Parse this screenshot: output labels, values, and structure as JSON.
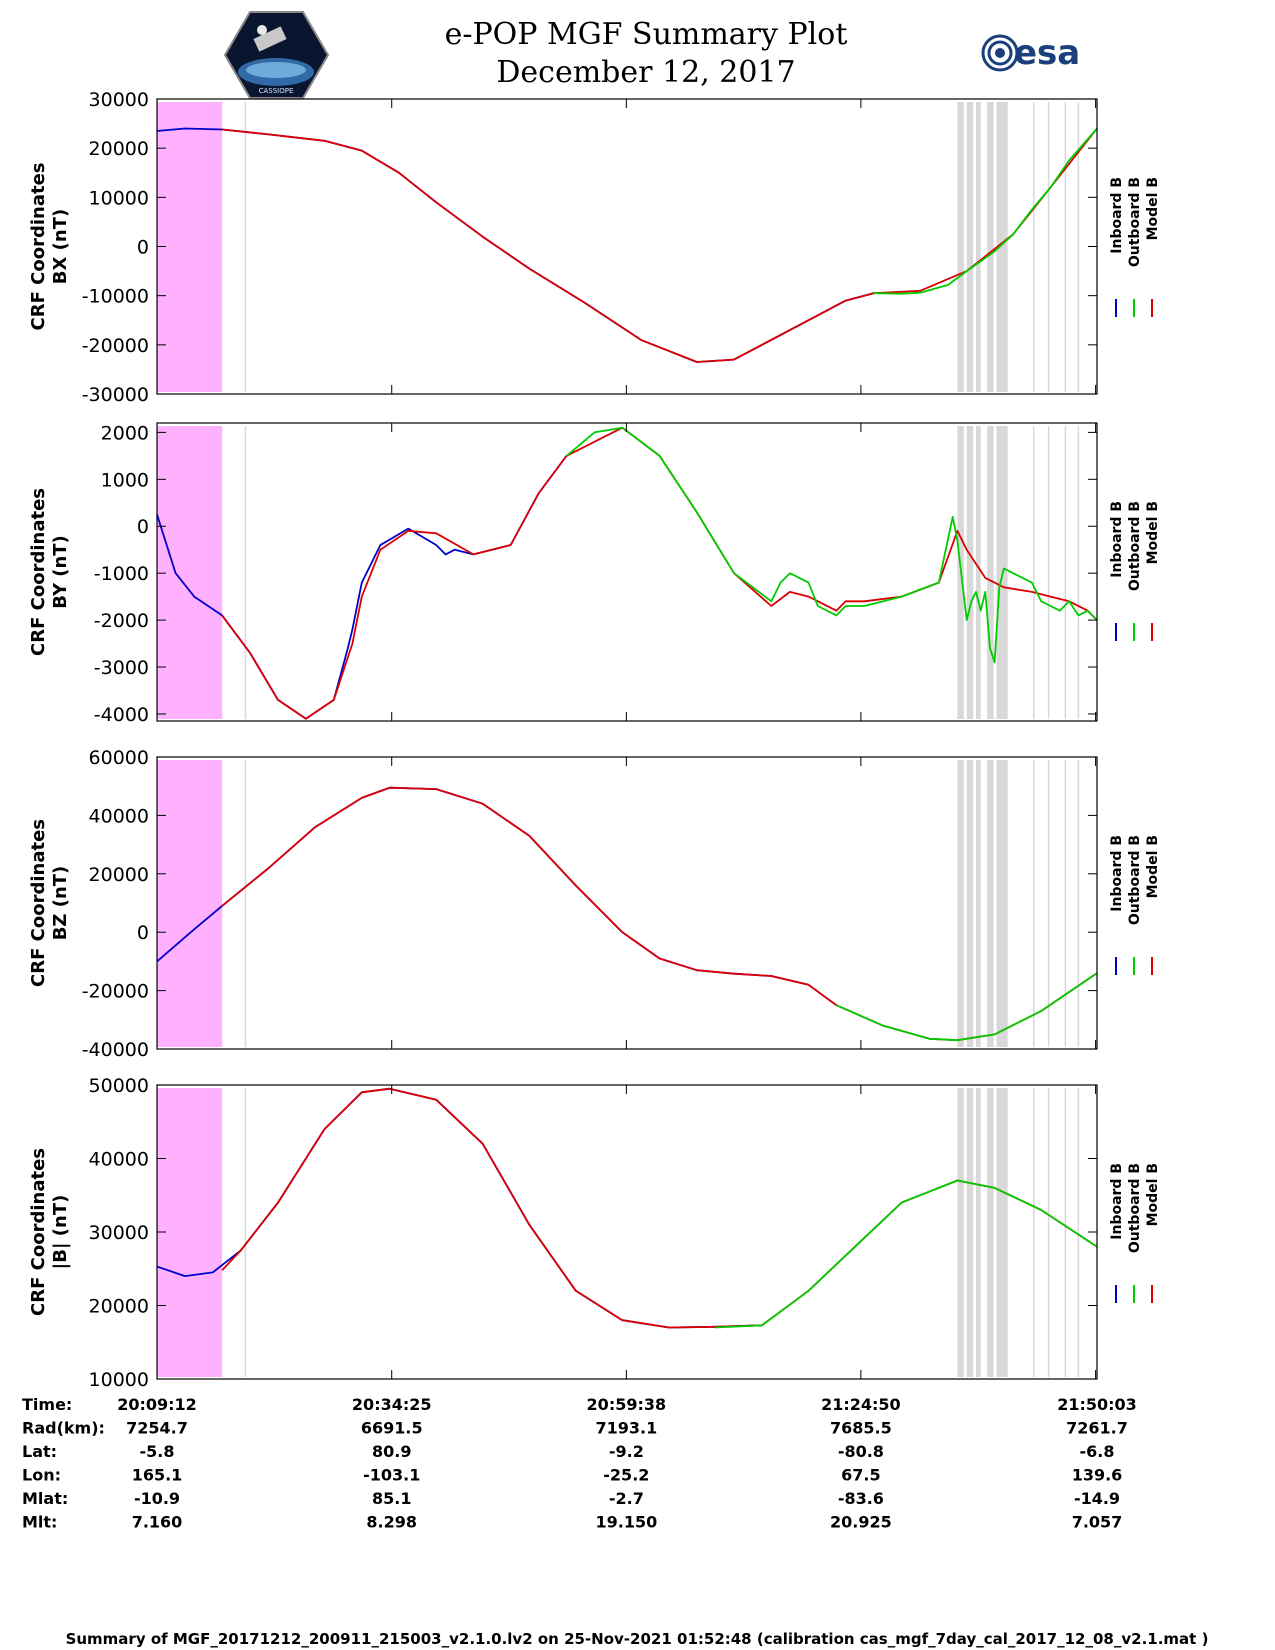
{
  "header": {
    "title_line1": "e-POP MGF Summary Plot",
    "title_line2": "December 12, 2017",
    "logo_left_text": "CASSIOPE",
    "logo_right_text": "esa"
  },
  "colors": {
    "inboard": "#0000cc",
    "outboard": "#00cc00",
    "model": "#dd0000",
    "shade_magenta": "#ffb0ff",
    "shade_gray": "#d8d8d8"
  },
  "legend": {
    "labels": [
      "Inboard B",
      "Outboard B",
      "Model B"
    ]
  },
  "chart_data": [
    {
      "type": "line",
      "panel": "BX",
      "ylabel_line1": "CRF Coordinates",
      "ylabel_line2": "BX (nT)",
      "ylim": [
        -30000,
        30000
      ],
      "yticks": [
        30000,
        20000,
        10000,
        0,
        -10000,
        -20000,
        -30000
      ],
      "x_minutes_range": [
        0,
        101
      ],
      "series": [
        {
          "name": "Inboard B",
          "color_key": "inboard",
          "x": [
            0,
            3,
            7,
            12,
            18,
            22,
            26,
            30,
            35,
            40,
            46,
            52,
            58,
            62,
            68,
            74,
            77
          ],
          "values": [
            23500,
            24000,
            23800,
            22800,
            21500,
            19500,
            15000,
            9000,
            2000,
            -4500,
            -11500,
            -19000,
            -23500,
            -23000,
            -17000,
            -11000,
            -9500
          ]
        },
        {
          "name": "Model B",
          "color_key": "model",
          "x": [
            7,
            12,
            18,
            22,
            26,
            30,
            35,
            40,
            46,
            52,
            58,
            62,
            68,
            74,
            77,
            82,
            87,
            92,
            96,
            101
          ],
          "values": [
            23800,
            22800,
            21500,
            19500,
            15000,
            9000,
            2000,
            -4500,
            -11500,
            -19000,
            -23500,
            -23000,
            -17000,
            -11000,
            -9500,
            -9000,
            -5000,
            2500,
            12000,
            24000
          ]
        },
        {
          "name": "Outboard B",
          "color_key": "outboard",
          "x": [
            77,
            80,
            82,
            85,
            87,
            90,
            92,
            94,
            96,
            98,
            101
          ],
          "values": [
            -9500,
            -9600,
            -9400,
            -7800,
            -5000,
            -1000,
            2500,
            7500,
            12000,
            17500,
            24000
          ]
        }
      ]
    },
    {
      "type": "line",
      "panel": "BY",
      "ylabel_line1": "CRF Coordinates",
      "ylabel_line2": "BY (nT)",
      "ylim": [
        -4100,
        2100
      ],
      "yticks": [
        2000,
        1000,
        0,
        -1000,
        -2000,
        -3000,
        -4000
      ],
      "x_minutes_range": [
        0,
        101
      ],
      "series": [
        {
          "name": "Inboard B",
          "color_key": "inboard",
          "x": [
            0,
            2,
            4,
            7,
            10,
            13,
            16,
            19,
            20.5,
            21,
            22,
            24,
            27,
            30,
            31,
            32,
            34,
            38,
            41,
            44
          ],
          "values": [
            250,
            -1000,
            -1500,
            -1900,
            -2700,
            -3700,
            -4100,
            -3700,
            -2600,
            -2200,
            -1200,
            -400,
            -50,
            -400,
            -600,
            -500,
            -600,
            -400,
            700,
            1500
          ]
        },
        {
          "name": "Model B",
          "color_key": "model",
          "x": [
            7,
            10,
            13,
            16,
            19,
            21,
            22,
            24,
            27,
            30,
            34,
            38,
            41,
            44,
            50,
            54,
            58,
            62,
            66,
            68,
            70,
            73,
            74,
            76,
            80,
            84,
            86,
            87,
            89,
            91,
            94,
            96,
            98,
            100,
            101
          ],
          "values": [
            -1900,
            -2700,
            -3700,
            -4100,
            -3700,
            -2500,
            -1500,
            -500,
            -100,
            -150,
            -600,
            -400,
            700,
            1500,
            2100,
            1500,
            300,
            -1000,
            -1700,
            -1400,
            -1500,
            -1800,
            -1600,
            -1600,
            -1500,
            -1200,
            -100,
            -500,
            -1100,
            -1300,
            -1400,
            -1500,
            -1600,
            -1800,
            -2000
          ]
        },
        {
          "name": "Outboard B",
          "color_key": "outboard",
          "x": [
            44,
            47,
            50,
            54,
            58,
            62,
            66,
            67,
            68,
            70,
            71,
            73,
            74,
            76,
            80,
            84,
            85.5,
            86,
            87,
            87.5,
            88,
            88.5,
            89,
            89.5,
            90,
            90.5,
            91,
            92,
            94,
            95,
            96,
            97,
            98,
            99,
            100,
            101
          ],
          "values": [
            1500,
            2000,
            2100,
            1500,
            300,
            -1000,
            -1600,
            -1200,
            -1000,
            -1200,
            -1700,
            -1900,
            -1700,
            -1700,
            -1500,
            -1200,
            200,
            -300,
            -2000,
            -1600,
            -1400,
            -1800,
            -1400,
            -2600,
            -2900,
            -1300,
            -900,
            -1000,
            -1200,
            -1600,
            -1700,
            -1800,
            -1600,
            -1900,
            -1800,
            -2000
          ]
        }
      ]
    },
    {
      "type": "line",
      "panel": "BZ",
      "ylabel_line1": "CRF Coordinates",
      "ylabel_line2": "BZ (nT)",
      "ylim": [
        -40000,
        60000
      ],
      "yticks": [
        60000,
        40000,
        20000,
        0,
        -20000,
        -40000
      ],
      "x_minutes_range": [
        0,
        101
      ],
      "series": [
        {
          "name": "Inboard B",
          "color_key": "inboard",
          "x": [
            0,
            4,
            7,
            12,
            17,
            22,
            25,
            30,
            35,
            40,
            45,
            50,
            54,
            58,
            62,
            66,
            70,
            73
          ],
          "values": [
            -10000,
            1000,
            9000,
            22000,
            36000,
            46000,
            49500,
            49000,
            44000,
            33000,
            16000,
            0,
            -9000,
            -13000,
            -14200,
            -15000,
            -18000,
            -25000
          ]
        },
        {
          "name": "Model B",
          "color_key": "model",
          "x": [
            7,
            12,
            17,
            22,
            25,
            30,
            35,
            40,
            45,
            50,
            54,
            58,
            62,
            66,
            70,
            73,
            78,
            83,
            86,
            90,
            95,
            101
          ],
          "values": [
            9000,
            22000,
            36000,
            46000,
            49500,
            49000,
            44000,
            33000,
            16000,
            0,
            -9000,
            -13000,
            -14200,
            -15000,
            -18000,
            -25000,
            -32000,
            -36500,
            -37000,
            -35000,
            -27000,
            -14000
          ]
        },
        {
          "name": "Outboard B",
          "color_key": "outboard",
          "x": [
            73,
            78,
            83,
            86,
            90,
            95,
            101
          ],
          "values": [
            -25000,
            -32000,
            -36500,
            -37000,
            -35000,
            -27000,
            -14000
          ]
        }
      ]
    },
    {
      "type": "line",
      "panel": "|B|",
      "ylabel_line1": "CRF Coordinates",
      "ylabel_line2": "|B| (nT)",
      "ylim": [
        10000,
        50000
      ],
      "yticks": [
        50000,
        40000,
        30000,
        20000,
        10000
      ],
      "x_minutes_range": [
        0,
        101
      ],
      "series": [
        {
          "name": "Inboard B",
          "color_key": "inboard",
          "x": [
            0,
            3,
            6,
            9,
            13,
            18,
            22,
            25,
            30,
            35,
            40,
            45,
            50,
            55,
            60,
            65
          ],
          "values": [
            25300,
            24000,
            24500,
            27500,
            34000,
            44000,
            49000,
            49500,
            48000,
            42000,
            31000,
            22000,
            18000,
            17000,
            17100,
            17300
          ]
        },
        {
          "name": "Model B",
          "color_key": "model",
          "x": [
            7,
            9,
            13,
            18,
            22,
            25,
            30,
            35,
            40,
            45,
            50,
            55,
            60,
            65,
            70,
            75,
            80,
            86,
            90,
            95,
            101
          ],
          "values": [
            24800,
            27500,
            34000,
            44000,
            49000,
            49500,
            48000,
            42000,
            31000,
            22000,
            18000,
            17000,
            17100,
            17300,
            22000,
            28000,
            34000,
            37000,
            36000,
            33000,
            28000
          ]
        },
        {
          "name": "Outboard B",
          "color_key": "outboard",
          "x": [
            60,
            65,
            70,
            75,
            80,
            86,
            90,
            95,
            101
          ],
          "values": [
            17000,
            17300,
            22000,
            28000,
            34000,
            37000,
            36000,
            33000,
            28000
          ]
        }
      ]
    }
  ],
  "shading": {
    "magenta_x_minutes": [
      0,
      7
    ],
    "gray_lines_x_minutes": [
      9.5,
      94.2,
      95.8,
      97.6,
      99.0
    ],
    "gray_bands_x_minutes": [
      [
        86.0,
        86.7
      ],
      [
        87.0,
        87.7
      ],
      [
        88.0,
        88.5
      ],
      [
        89.2,
        89.9
      ],
      [
        90.2,
        91.4
      ]
    ]
  },
  "ephemeris": {
    "row_labels": [
      "Time:",
      "Rad(km):",
      "Lat:",
      "Lon:",
      "Mlat:",
      "Mlt:"
    ],
    "columns": [
      [
        "20:09:12",
        "7254.7",
        "-5.8",
        "165.1",
        "-10.9",
        "7.160"
      ],
      [
        "20:34:25",
        "6691.5",
        "80.9",
        "-103.1",
        "85.1",
        "8.298"
      ],
      [
        "20:59:38",
        "7193.1",
        "-9.2",
        "-25.2",
        "-2.7",
        "19.150"
      ],
      [
        "21:24:50",
        "7685.5",
        "-80.8",
        "67.5",
        "-83.6",
        "20.925"
      ],
      [
        "21:50:03",
        "7261.7",
        "-6.8",
        "139.6",
        "-14.9",
        "7.057"
      ]
    ]
  },
  "footer": {
    "text": "Summary of MGF_20171212_200911_215003_v2.1.0.lv2 on 25-Nov-2021 01:52:48 (calibration cas_mgf_7day_cal_2017_12_08_v2.1.mat )"
  }
}
